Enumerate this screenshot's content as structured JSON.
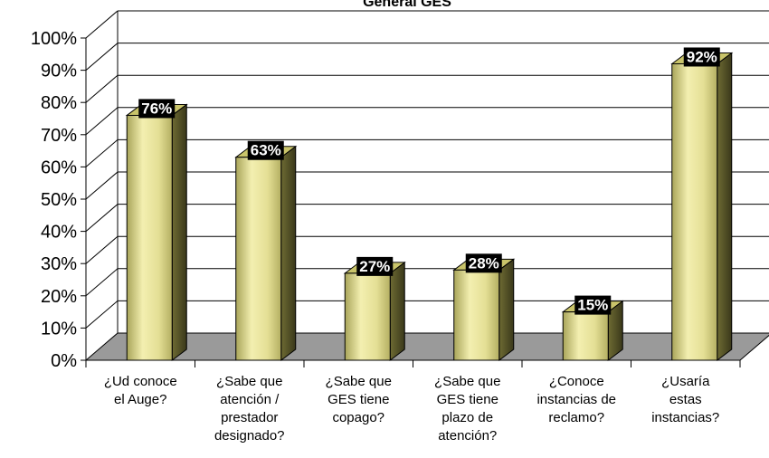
{
  "chart_data": {
    "type": "bar",
    "title": "General GES",
    "xlabel": "",
    "ylabel": "",
    "ylim": [
      0,
      100
    ],
    "y_ticks": [
      "0%",
      "10%",
      "20%",
      "30%",
      "40%",
      "50%",
      "60%",
      "70%",
      "80%",
      "90%",
      "100%"
    ],
    "y_tick_values": [
      0,
      10,
      20,
      30,
      40,
      50,
      60,
      70,
      80,
      90,
      100
    ],
    "categories": [
      [
        "¿Ud conoce",
        "el Auge?"
      ],
      [
        "¿Sabe que",
        "atención /",
        "prestador",
        "designado?"
      ],
      [
        "¿Sabe que",
        "GES tiene",
        "copago?"
      ],
      [
        "¿Sabe que",
        "GES tiene",
        "plazo de",
        "atención?"
      ],
      [
        "¿Conoce",
        "instancias de",
        "reclamo?"
      ],
      [
        "¿Usaría",
        "estas",
        "instancias?"
      ]
    ],
    "values": [
      76,
      63,
      27,
      28,
      15,
      92
    ],
    "data_labels": [
      "76%",
      "63%",
      "27%",
      "28%",
      "15%",
      "92%"
    ],
    "grid": true,
    "legend": "none",
    "colors": {
      "bar_front": "#e6e29a",
      "bar_top": "#c9c46a",
      "bar_side": "#5c5a2c",
      "floor": "#9a9a9a",
      "label_bg": "#000000"
    }
  }
}
